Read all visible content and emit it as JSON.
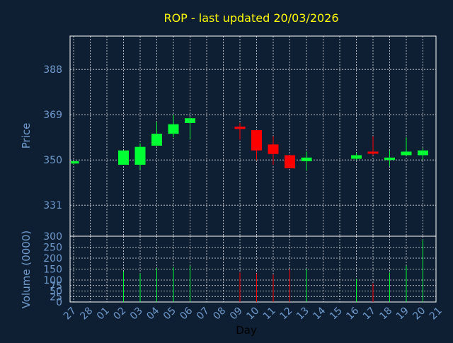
{
  "chart_data": {
    "type": "candlestick",
    "title": "ROP - last updated 20/03/2026",
    "xlabel": "Day",
    "price_axis": {
      "label": "Price",
      "ylim": [
        318,
        402
      ],
      "ticks": [
        331,
        350,
        369,
        388
      ]
    },
    "volume_axis": {
      "label": "Volume (0000)",
      "ylim": [
        0,
        300
      ],
      "ticks": [
        0,
        25,
        50,
        75,
        100,
        150,
        200,
        250,
        300
      ]
    },
    "x_ticks": [
      "27",
      "28",
      "01",
      "02",
      "03",
      "04",
      "05",
      "06",
      "07",
      "08",
      "09",
      "10",
      "11",
      "12",
      "13",
      "14",
      "15",
      "16",
      "17",
      "18",
      "19",
      "20",
      "21"
    ],
    "grid": true,
    "colors": {
      "background": "#0f1f33",
      "title": "#ffff00",
      "axis_text": "#6f9acc",
      "axis_line": "#ffffff",
      "grid": "#ffffff",
      "up": "#00ff33",
      "down": "#ff0000"
    },
    "candles": [
      {
        "day": "27",
        "open": 348.5,
        "high": 349.5,
        "low": 348.0,
        "close": 349.5,
        "volume": 0
      },
      {
        "day": "02",
        "open": 348.0,
        "high": 354.0,
        "low": 348.0,
        "close": 354.0,
        "volume": 140
      },
      {
        "day": "03",
        "open": 348.0,
        "high": 357.0,
        "low": 346.0,
        "close": 355.5,
        "volume": 130
      },
      {
        "day": "04",
        "open": 356.0,
        "high": 366.0,
        "low": 356.0,
        "close": 361.0,
        "volume": 155
      },
      {
        "day": "05",
        "open": 361.0,
        "high": 369.0,
        "low": 359.5,
        "close": 365.0,
        "volume": 160
      },
      {
        "day": "06",
        "open": 365.5,
        "high": 368.0,
        "low": 358.5,
        "close": 367.5,
        "volume": 165
      },
      {
        "day": "09",
        "open": 364.0,
        "high": 365.5,
        "low": 358.5,
        "close": 363.0,
        "volume": 135
      },
      {
        "day": "10",
        "open": 362.5,
        "high": 362.5,
        "low": 350.0,
        "close": 354.0,
        "volume": 130
      },
      {
        "day": "11",
        "open": 356.5,
        "high": 360.0,
        "low": 348.0,
        "close": 352.5,
        "volume": 125
      },
      {
        "day": "12",
        "open": 352.0,
        "high": 352.0,
        "low": 346.5,
        "close": 346.5,
        "volume": 150
      },
      {
        "day": "13",
        "open": 349.5,
        "high": 353.5,
        "low": 345.5,
        "close": 351.0,
        "volume": 150
      },
      {
        "day": "16",
        "open": 350.5,
        "high": 353.0,
        "low": 350.0,
        "close": 352.0,
        "volume": 105
      },
      {
        "day": "17",
        "open": 353.5,
        "high": 360.0,
        "low": 352.0,
        "close": 353.0,
        "volume": 85
      },
      {
        "day": "18",
        "open": 350.0,
        "high": 354.0,
        "low": 347.5,
        "close": 351.0,
        "volume": 135
      },
      {
        "day": "19",
        "open": 352.0,
        "high": 359.5,
        "low": 352.0,
        "close": 353.5,
        "volume": 165
      },
      {
        "day": "20",
        "open": 352.0,
        "high": 355.0,
        "low": 350.0,
        "close": 354.0,
        "volume": 285
      }
    ]
  }
}
